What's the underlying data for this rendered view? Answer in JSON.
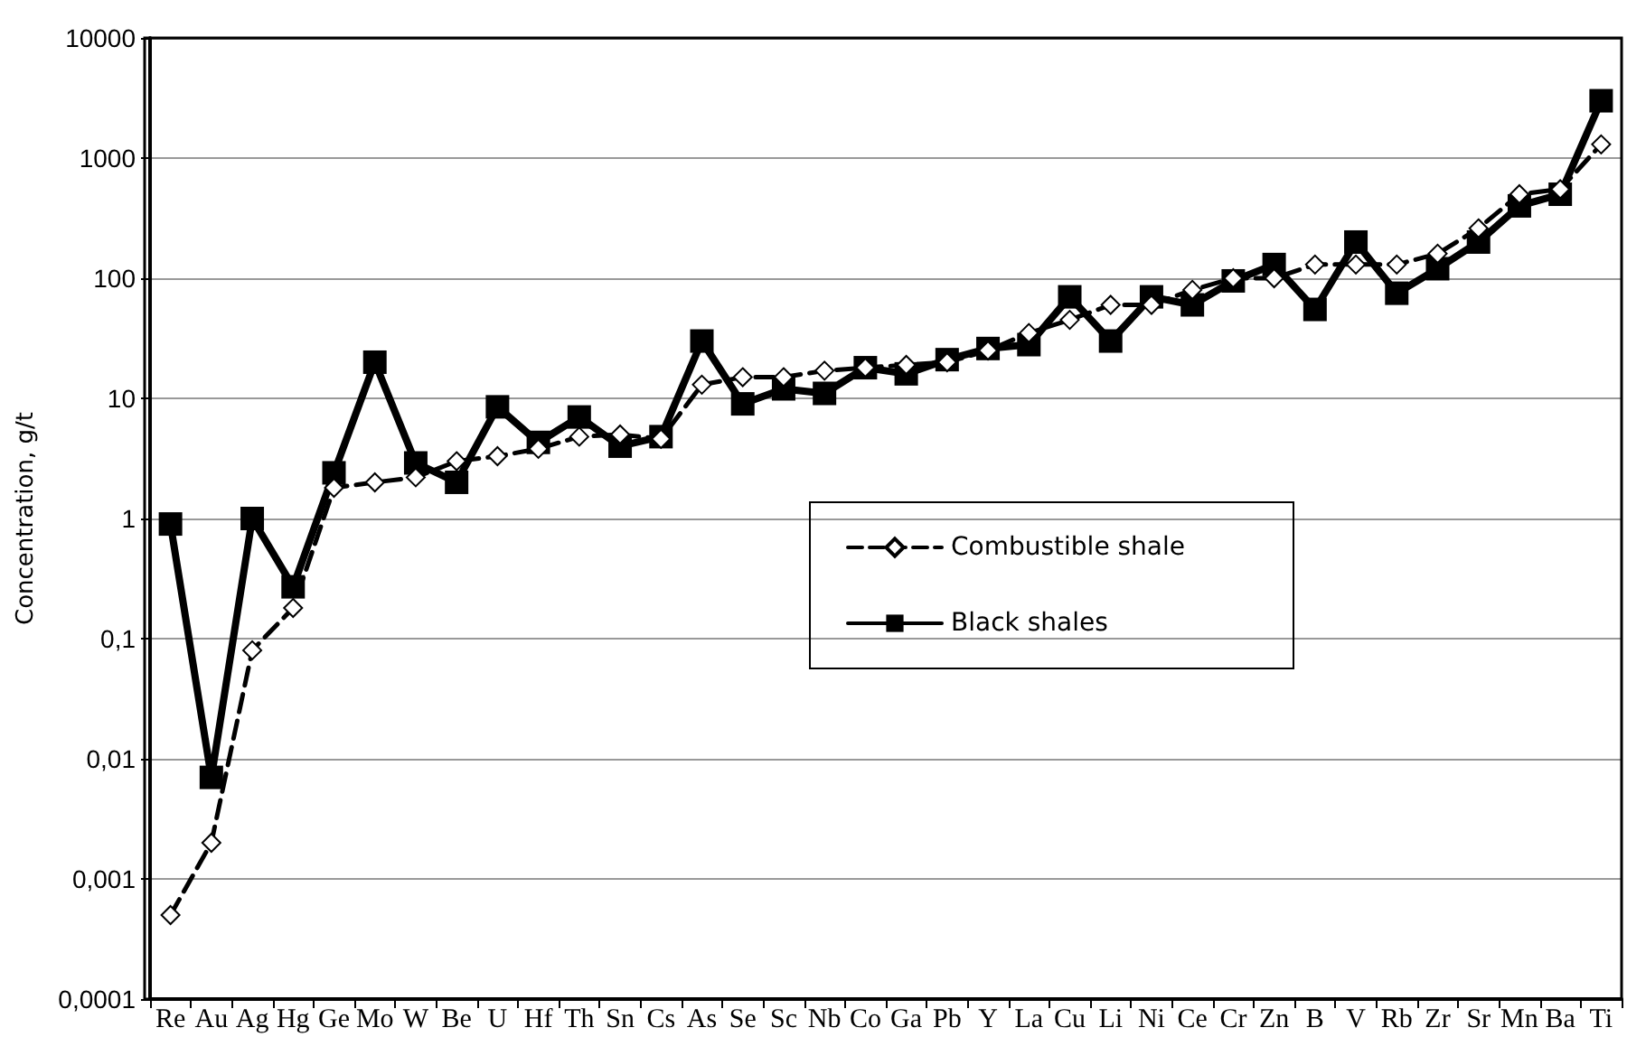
{
  "chart_data": {
    "type": "line",
    "ylabel": "Concentration, g/t",
    "categories": [
      "Re",
      "Au",
      "Ag",
      "Hg",
      "Ge",
      "Mo",
      "W",
      "Be",
      "U",
      "Hf",
      "Th",
      "Sn",
      "Cs",
      "As",
      "Se",
      "Sc",
      "Nb",
      "Co",
      "Ga",
      "Pb",
      "Y",
      "La",
      "Cu",
      "Li",
      "Ni",
      "Ce",
      "Cr",
      "Zn",
      "B",
      "V",
      "Rb",
      "Zr",
      "Sr",
      "Mn",
      "Ba",
      "Ti"
    ],
    "series": [
      {
        "name": "Combustible shale",
        "color": "#000000",
        "marker": "diamond",
        "line_style": "dashed",
        "values": [
          0.0005,
          0.002,
          0.08,
          0.18,
          1.8,
          2,
          2.2,
          3,
          3.3,
          3.8,
          4.8,
          5,
          4.6,
          13,
          15,
          15,
          17,
          18,
          19,
          20,
          25,
          35,
          45,
          60,
          60,
          80,
          100,
          100,
          130,
          130,
          130,
          160,
          260,
          500,
          550,
          1300
        ]
      },
      {
        "name": "Black shales",
        "color": "#000000",
        "marker": "square",
        "line_style": "solid",
        "values": [
          0.9,
          0.007,
          1,
          0.27,
          2.4,
          20,
          2.9,
          2,
          8.5,
          4.3,
          7,
          4,
          4.8,
          30,
          9,
          12,
          11,
          18,
          16,
          21,
          26,
          28,
          70,
          30,
          70,
          60,
          95,
          130,
          55,
          200,
          75,
          120,
          200,
          400,
          500,
          3000
        ]
      }
    ],
    "log": "y",
    "ylim": [
      0.0001,
      10000
    ],
    "yticks": [
      {
        "value": 0.0001,
        "label": "0,0001"
      },
      {
        "value": 0.001,
        "label": "0,001"
      },
      {
        "value": 0.01,
        "label": "0,01"
      },
      {
        "value": 0.1,
        "label": "0,1"
      },
      1,
      10,
      100,
      1000,
      10000
    ],
    "grid": "y",
    "legend": "center"
  }
}
